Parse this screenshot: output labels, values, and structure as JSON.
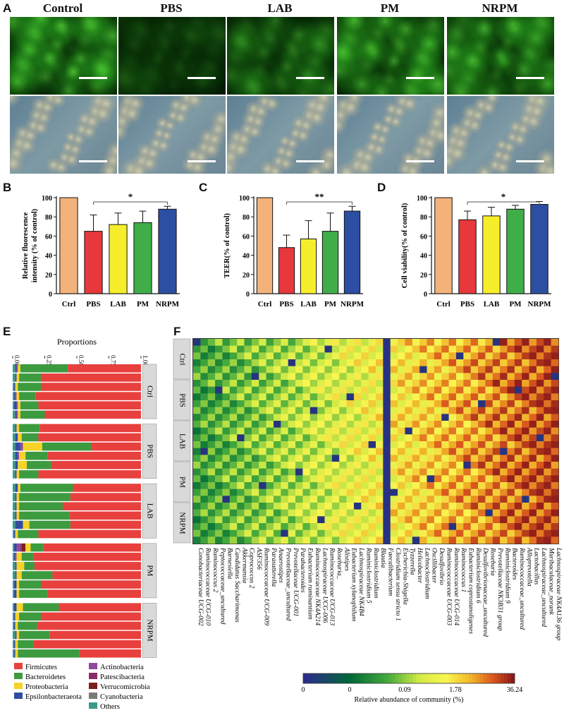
{
  "panel_letters": [
    "A",
    "B",
    "C",
    "D",
    "E",
    "F"
  ],
  "image_columns": [
    "Control",
    "PBS",
    "LAB",
    "PM",
    "NRPM"
  ],
  "colors": {
    "ctrl": "#f2b27a",
    "pbs": "#e8383c",
    "lab": "#f6ee2a",
    "pm": "#3fae49",
    "nrpm": "#2d4fa3",
    "firmicutes": "#e8403d",
    "bacteroidetes": "#3d9b3f",
    "proteobacteria": "#f5d327",
    "epsilon": "#2f4ca0",
    "actino": "#8e4a9e",
    "patesci": "#8a2a6a",
    "verruco": "#7b1e1e",
    "cyano": "#7a7a7a",
    "others": "#3a9a8a"
  },
  "chart_data": [
    {
      "type": "bar",
      "id": "B",
      "categories": [
        "Ctrl",
        "PBS",
        "LAB",
        "PM",
        "NRPM"
      ],
      "values": [
        100,
        65,
        72,
        74,
        88
      ],
      "errors": [
        0,
        17,
        12,
        12,
        3
      ],
      "ylabel": "Relative fluorescence intensity (% of control)",
      "ylim": [
        0,
        100
      ],
      "yticks": [
        "0",
        "20",
        "40",
        "60",
        "80",
        "100"
      ],
      "significance": "*"
    },
    {
      "type": "bar",
      "id": "C",
      "categories": [
        "Ctrl",
        "PBS",
        "LAB",
        "PM",
        "NRPM"
      ],
      "values": [
        100,
        48,
        57,
        65,
        86
      ],
      "errors": [
        0,
        13,
        19,
        19,
        5
      ],
      "ylabel": "TEER(% of control)",
      "ylim": [
        0,
        100
      ],
      "yticks": [
        "0",
        "20",
        "40",
        "60",
        "80",
        "100"
      ],
      "significance": "**"
    },
    {
      "type": "bar",
      "id": "D",
      "categories": [
        "Ctrl",
        "PBS",
        "LAB",
        "PM",
        "NRPM"
      ],
      "values": [
        100,
        77,
        81,
        88,
        93
      ],
      "errors": [
        0,
        9,
        9,
        4,
        3
      ],
      "ylabel": "Cell viability(% of control)",
      "ylim": [
        0,
        100
      ],
      "yticks": [
        "0",
        "20",
        "40",
        "60",
        "80",
        "100"
      ],
      "significance": "*"
    },
    {
      "type": "bar",
      "id": "E",
      "stacked": true,
      "orientation": "horizontal",
      "title": "Proportions",
      "xticks": [
        "0.00",
        "0.25",
        "0.50",
        "0.75",
        "1.00"
      ],
      "groups": [
        "Ctrl",
        "PBS",
        "LAB",
        "PM",
        "NRPM"
      ],
      "legend": [
        "Firmicutes",
        "Bacteroidetes",
        "Proteobacteria",
        "Epsilonbacteraeota",
        "Actinobacteria",
        "Patescibacteria",
        "Verrucomicrobia",
        "Cyanobacteria",
        "Others"
      ],
      "rows": [
        [
          0.57,
          0.37,
          0.02,
          0.01,
          0.01,
          0,
          0,
          0,
          0.02
        ],
        [
          0.78,
          0.17,
          0.02,
          0.01,
          0,
          0,
          0,
          0,
          0.02
        ],
        [
          0.78,
          0.18,
          0.02,
          0.01,
          0,
          0,
          0,
          0,
          0.01
        ],
        [
          0.82,
          0.13,
          0.02,
          0.01,
          0.01,
          0,
          0,
          0,
          0.01
        ],
        [
          0.8,
          0.14,
          0.02,
          0.02,
          0.01,
          0,
          0,
          0,
          0.01
        ],
        [
          0.75,
          0.19,
          0.02,
          0.01,
          0.01,
          0,
          0,
          0,
          0.02
        ],
        [
          0.79,
          0.16,
          0.02,
          0.01,
          0,
          0,
          0,
          0,
          0.02
        ],
        [
          0.8,
          0.13,
          0.03,
          0.02,
          0,
          0,
          0,
          0,
          0.02
        ],
        [
          0.39,
          0.38,
          0.15,
          0.04,
          0.02,
          0,
          0,
          0,
          0.02
        ],
        [
          0.73,
          0.17,
          0.05,
          0.02,
          0.01,
          0,
          0,
          0,
          0.02
        ],
        [
          0.7,
          0.19,
          0.07,
          0.02,
          0,
          0,
          0,
          0,
          0.02
        ],
        [
          0.8,
          0.15,
          0.02,
          0.01,
          0,
          0,
          0,
          0,
          0.02
        ],
        [
          0.53,
          0.41,
          0.02,
          0.02,
          0,
          0,
          0,
          0,
          0.02
        ],
        [
          0.55,
          0.4,
          0.02,
          0.01,
          0,
          0,
          0,
          0,
          0.02
        ],
        [
          0.61,
          0.34,
          0.02,
          0.01,
          0,
          0,
          0,
          0,
          0.02
        ],
        [
          0.56,
          0.39,
          0.02,
          0.01,
          0,
          0,
          0,
          0,
          0.02
        ],
        [
          0.55,
          0.32,
          0.05,
          0.06,
          0,
          0,
          0,
          0,
          0.02
        ],
        [
          0.8,
          0.16,
          0.02,
          0.01,
          0,
          0,
          0,
          0,
          0.01
        ],
        [
          0.76,
          0.1,
          0.04,
          0.02,
          0.03,
          0.01,
          0.03,
          0,
          0.01
        ],
        [
          0.84,
          0.09,
          0.04,
          0.01,
          0.01,
          0,
          0,
          0,
          0.01
        ],
        [
          0.83,
          0.08,
          0.06,
          0.01,
          0,
          0,
          0,
          0,
          0.02
        ],
        [
          0.69,
          0.24,
          0.04,
          0.01,
          0,
          0,
          0,
          0,
          0.02
        ],
        [
          0.78,
          0.17,
          0.02,
          0.02,
          0,
          0,
          0,
          0,
          0.01
        ],
        [
          0.73,
          0.22,
          0.02,
          0.02,
          0,
          0,
          0,
          0,
          0.01
        ],
        [
          0.64,
          0.28,
          0.05,
          0.02,
          0,
          0,
          0,
          0,
          0.01
        ],
        [
          0.78,
          0.17,
          0.03,
          0.01,
          0,
          0,
          0,
          0,
          0.01
        ],
        [
          0.81,
          0.15,
          0.02,
          0.01,
          0,
          0,
          0,
          0,
          0.01
        ],
        [
          0.71,
          0.24,
          0.02,
          0.01,
          0,
          0,
          0,
          0,
          0.02
        ],
        [
          0.84,
          0.12,
          0.02,
          0.01,
          0,
          0,
          0,
          0,
          0.01
        ],
        [
          0.48,
          0.48,
          0.02,
          0.01,
          0,
          0,
          0,
          0,
          0.01
        ]
      ]
    },
    {
      "type": "heatmap",
      "id": "F",
      "groups": [
        "Ctrl",
        "PBS",
        "LAB",
        "PM",
        "NRPM"
      ],
      "rows_per_group": 6,
      "columns": [
        "Conobacteriaceae UCG-002",
        "Ruminococcaceae UCG-010",
        "Ruminococcus 2",
        "Peptococcaceae_uncultured",
        "Barnesiella",
        "Candidatus Saccharimonas",
        "Akkermansia",
        "Coprococcus 2",
        "ASF356",
        "Ruminococcaceae UCG-009",
        "Parasutterella",
        "Anaerostipes",
        "Prevotellaceae_uncultured",
        "Prevotellaceae UCG-001",
        "Parabacteroides",
        "Eubacterium ruminantium",
        "Ruminococcaceae NK4A214",
        "Lachnospiraceae UCG-006",
        "Ruminococcaceae UCG-013",
        "Roseburia_",
        "Alistipes",
        "Eubacterium xylanophilum",
        "Lachnospiraceae NK4B4",
        "Ruminiclostridium 5",
        "Ruminiclostridium",
        "Blautia",
        "Faecalibacterium",
        "Clostridium sensu stricto 1",
        "Escherichia-Shigella",
        "Tyzzerella",
        "Helicobacter",
        "Lachnoclostridium",
        "Oscillibacter",
        "Desulfovibrio",
        "Ruminococcaceae UCG-003",
        "Ruminococcaceae UCG-014",
        "Ruminococcus 1",
        "Eubacterium coprostanoligenes",
        "Ruminiclostridium 6",
        "Desulfovibrionaceae_uncultured",
        "Roseburia",
        "Prevotellaceae NK3B31 group",
        "Ruminiclostridium 9",
        "Bacteroides",
        "Ruminococcaceae_uncultured",
        "Alloprevotella",
        "Lactobacillus",
        "Lachnospiraceae_uncultured",
        "Muribaculaceae_norank",
        "Lachnospiraceae NK4A136 group"
      ],
      "colorbar_ticks": [
        "0",
        "0",
        "0.09",
        "1.78",
        "36.24"
      ],
      "colorbar_label": "Relative abundance of community (%)"
    }
  ]
}
